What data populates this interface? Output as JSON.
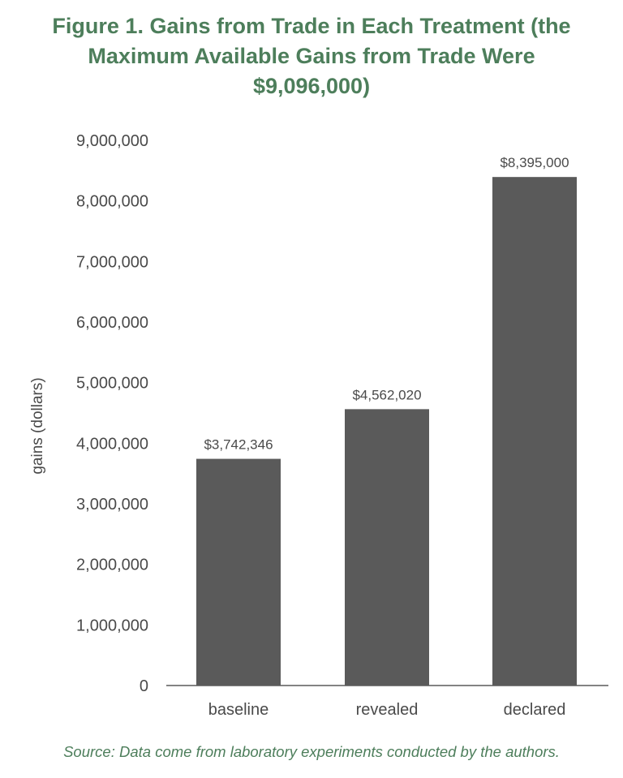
{
  "title": "Figure 1. Gains from Trade in Each Treatment (the Maximum Available Gains from Trade Were $9,096,000)",
  "source": "Source: Data come from laboratory experiments conducted by the authors.",
  "chart_data": {
    "type": "bar",
    "title": "Figure 1. Gains from Trade in Each Treatment (the Maximum Available Gains from Trade Were $9,096,000)",
    "xlabel": "",
    "ylabel": "gains (dollars)",
    "categories": [
      "baseline",
      "revealed",
      "declared"
    ],
    "values": [
      3742346,
      4562020,
      8395000
    ],
    "data_labels": [
      "$3,742,346",
      "$4,562,020",
      "$8,395,000"
    ],
    "ylim": [
      0,
      9000000
    ],
    "yticks": [
      0,
      1000000,
      2000000,
      3000000,
      4000000,
      5000000,
      6000000,
      7000000,
      8000000,
      9000000
    ],
    "ytick_labels": [
      "0",
      "1,000,000",
      "2,000,000",
      "3,000,000",
      "4,000,000",
      "5,000,000",
      "6,000,000",
      "7,000,000",
      "8,000,000",
      "9,000,000"
    ],
    "grid": false,
    "legend": "none",
    "colors": {
      "bar": "#5a5a5a",
      "title": "#4d7e5b",
      "text": "#4a4a4a"
    }
  }
}
